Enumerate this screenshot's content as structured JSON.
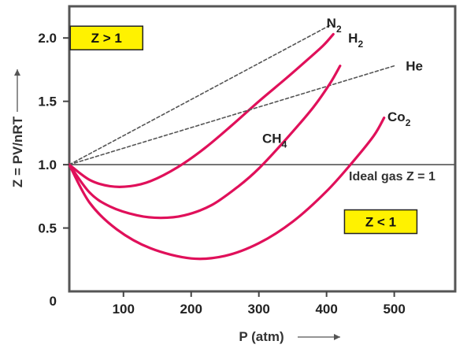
{
  "chart_data": {
    "type": "line",
    "xlabel": "P (atm)",
    "ylabel": "Z = PV/nRT",
    "xlim": [
      20,
      590
    ],
    "ylim": [
      0,
      2.25
    ],
    "x_ticks": [
      100,
      200,
      300,
      400,
      500
    ],
    "y_ticks": [
      {
        "value": 0,
        "label": "0"
      },
      {
        "value": 0.5,
        "label": "0.5"
      },
      {
        "value": 1.0,
        "label": "1.0"
      },
      {
        "value": 1.5,
        "label": "1.5"
      },
      {
        "value": 2.0,
        "label": "2.0"
      }
    ],
    "reference_line": {
      "y": 1.0,
      "label": "Ideal gas Z = 1"
    },
    "regions": [
      {
        "label": "Z > 1",
        "x": 75,
        "y": 2.0
      },
      {
        "label": "Z < 1",
        "x": 480,
        "y": 0.55
      }
    ],
    "series": [
      {
        "name": "N",
        "subscript": "2",
        "style": "dashed",
        "color": "#555555",
        "points": [
          [
            20,
            1.0
          ],
          [
            405,
            2.1
          ]
        ]
      },
      {
        "name": "H",
        "subscript": "2",
        "style": "solid",
        "color": "#e0105a",
        "points": [
          [
            20,
            1.0
          ],
          [
            50,
            0.88
          ],
          [
            80,
            0.83
          ],
          [
            110,
            0.83
          ],
          [
            140,
            0.87
          ],
          [
            180,
            0.98
          ],
          [
            220,
            1.13
          ],
          [
            260,
            1.31
          ],
          [
            300,
            1.5
          ],
          [
            340,
            1.68
          ],
          [
            370,
            1.82
          ],
          [
            395,
            1.94
          ],
          [
            410,
            2.03
          ]
        ]
      },
      {
        "name": "He",
        "style": "dashed",
        "color": "#555555",
        "points": [
          [
            20,
            1.0
          ],
          [
            500,
            1.78
          ]
        ]
      },
      {
        "name": "CH",
        "subscript": "4",
        "style": "solid",
        "color": "#e0105a",
        "points": [
          [
            20,
            1.0
          ],
          [
            50,
            0.78
          ],
          [
            80,
            0.67
          ],
          [
            120,
            0.6
          ],
          [
            155,
            0.58
          ],
          [
            190,
            0.6
          ],
          [
            230,
            0.68
          ],
          [
            270,
            0.83
          ],
          [
            300,
            0.97
          ],
          [
            340,
            1.2
          ],
          [
            380,
            1.45
          ],
          [
            405,
            1.64
          ],
          [
            420,
            1.78
          ]
        ]
      },
      {
        "name": "Co",
        "subscript": "2",
        "style": "solid",
        "color": "#e0105a",
        "points": [
          [
            20,
            1.0
          ],
          [
            50,
            0.7
          ],
          [
            90,
            0.49
          ],
          [
            140,
            0.34
          ],
          [
            200,
            0.26
          ],
          [
            250,
            0.28
          ],
          [
            300,
            0.38
          ],
          [
            350,
            0.55
          ],
          [
            400,
            0.79
          ],
          [
            440,
            1.03
          ],
          [
            470,
            1.23
          ],
          [
            485,
            1.37
          ]
        ]
      }
    ],
    "series_labels": [
      {
        "series": 0,
        "x": 400,
        "y": 2.12
      },
      {
        "series": 1,
        "x": 432,
        "y": 2.0
      },
      {
        "series": 2,
        "x": 517,
        "y": 1.78
      },
      {
        "series": 3,
        "x": 305,
        "y": 1.21
      },
      {
        "series": 4,
        "x": 490,
        "y": 1.38
      }
    ],
    "ref_label_pos": {
      "x": 433,
      "y": 0.92
    }
  }
}
